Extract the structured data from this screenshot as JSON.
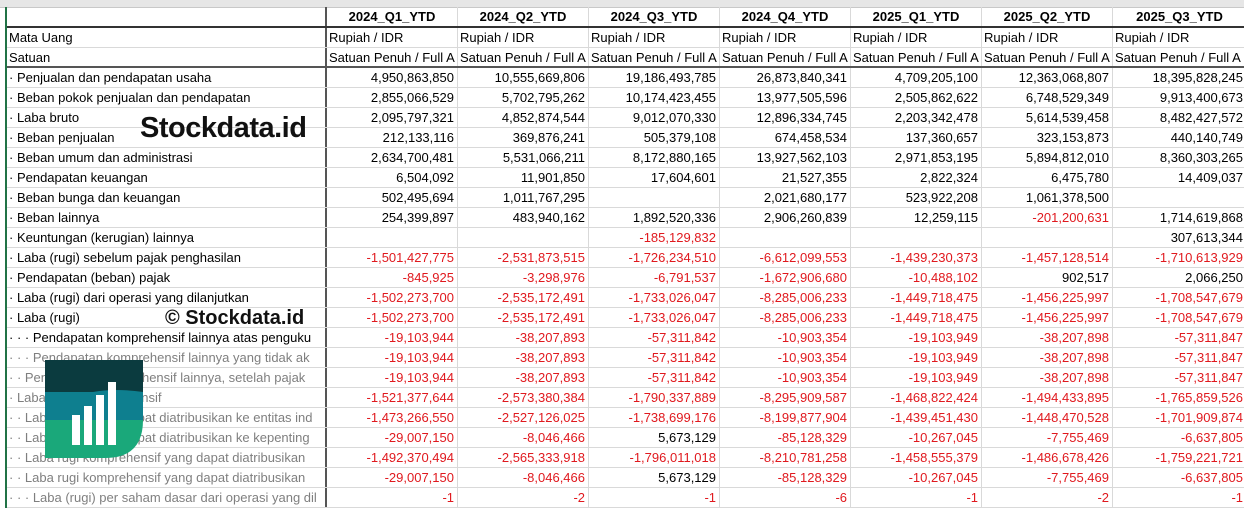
{
  "header": {
    "label_col": "",
    "periods": [
      "2024_Q1_YTD",
      "2024_Q2_YTD",
      "2024_Q3_YTD",
      "2024_Q4_YTD",
      "2025_Q1_YTD",
      "2025_Q2_YTD",
      "2025_Q3_YTD"
    ]
  },
  "meta_rows": [
    {
      "label": "Mata Uang",
      "values": [
        "Rupiah / IDR",
        "Rupiah / IDR",
        "Rupiah / IDR",
        "Rupiah / IDR",
        "Rupiah / IDR",
        "Rupiah / IDR",
        "Rupiah / IDR"
      ]
    },
    {
      "label": "Satuan",
      "values": [
        "Satuan Penuh / Full A",
        "Satuan Penuh / Full A",
        "Satuan Penuh / Full A",
        "Satuan Penuh / Full A",
        "Satuan Penuh / Full A",
        "Satuan Penuh / Full A",
        "Satuan Penuh / Full A"
      ]
    }
  ],
  "rows": [
    {
      "label": "· Penjualan dan pendapatan usaha",
      "values": [
        "4,950,863,850",
        "10,555,669,806",
        "19,186,493,785",
        "26,873,840,341",
        "4,709,205,100",
        "12,363,068,807",
        "18,395,828,245"
      ]
    },
    {
      "label": "· Beban pokok penjualan dan pendapatan",
      "values": [
        "2,855,066,529",
        "5,702,795,262",
        "10,174,423,455",
        "13,977,505,596",
        "2,505,862,622",
        "6,748,529,349",
        "9,913,400,673"
      ]
    },
    {
      "label": "· Laba bruto",
      "values": [
        "2,095,797,321",
        "4,852,874,544",
        "9,012,070,330",
        "12,896,334,745",
        "2,203,342,478",
        "5,614,539,458",
        "8,482,427,572"
      ]
    },
    {
      "label": "· Beban penjualan",
      "values": [
        "212,133,116",
        "369,876,241",
        "505,379,108",
        "674,458,534",
        "137,360,657",
        "323,153,873",
        "440,140,749"
      ]
    },
    {
      "label": "· Beban umum dan administrasi",
      "values": [
        "2,634,700,481",
        "5,531,066,211",
        "8,172,880,165",
        "13,927,562,103",
        "2,971,853,195",
        "5,894,812,010",
        "8,360,303,265"
      ]
    },
    {
      "label": "· Pendapatan keuangan",
      "values": [
        "6,504,092",
        "11,901,850",
        "17,604,601",
        "21,527,355",
        "2,822,324",
        "6,475,780",
        "14,409,037"
      ]
    },
    {
      "label": "· Beban bunga dan keuangan",
      "values": [
        "502,495,694",
        "1,011,767,295",
        "",
        "2,021,680,177",
        "523,922,208",
        "1,061,378,500",
        ""
      ]
    },
    {
      "label": "· Beban lainnya",
      "values": [
        "254,399,897",
        "483,940,162",
        "1,892,520,336",
        "2,906,260,839",
        "12,259,115",
        "-201,200,631",
        "1,714,619,868"
      ]
    },
    {
      "label": "· Keuntungan (kerugian) lainnya",
      "values": [
        "",
        "",
        "-185,129,832",
        "",
        "",
        "",
        "307,613,344"
      ]
    },
    {
      "label": "· Laba (rugi) sebelum pajak penghasilan",
      "values": [
        "-1,501,427,775",
        "-2,531,873,515",
        "-1,726,234,510",
        "-6,612,099,553",
        "-1,439,230,373",
        "-1,457,128,514",
        "-1,710,613,929"
      ]
    },
    {
      "label": "· Pendapatan (beban) pajak",
      "values": [
        "-845,925",
        "-3,298,976",
        "-6,791,537",
        "-1,672,906,680",
        "-10,488,102",
        "902,517",
        "2,066,250"
      ]
    },
    {
      "label": "· Laba (rugi) dari operasi yang dilanjutkan",
      "values": [
        "-1,502,273,700",
        "-2,535,172,491",
        "-1,733,026,047",
        "-8,285,006,233",
        "-1,449,718,475",
        "-1,456,225,997",
        "-1,708,547,679"
      ]
    },
    {
      "label": "· Laba (rugi)",
      "values": [
        "-1,502,273,700",
        "-2,535,172,491",
        "-1,733,026,047",
        "-8,285,006,233",
        "-1,449,718,475",
        "-1,456,225,997",
        "-1,708,547,679"
      ]
    },
    {
      "label": "· · · Pendapatan komprehensif lainnya atas penguku",
      "values": [
        "-19,103,944",
        "-38,207,893",
        "-57,311,842",
        "-10,903,354",
        "-19,103,949",
        "-38,207,898",
        "-57,311,847"
      ]
    },
    {
      "label": "· · · Pendapatan komprehensif lainnya yang tidak ak",
      "grey": true,
      "values": [
        "-19,103,944",
        "-38,207,893",
        "-57,311,842",
        "-10,903,354",
        "-19,103,949",
        "-38,207,898",
        "-57,311,847"
      ]
    },
    {
      "label": "· · Pendapatan komprehensif lainnya, setelah pajak",
      "grey": true,
      "values": [
        "-19,103,944",
        "-38,207,893",
        "-57,311,842",
        "-10,903,354",
        "-19,103,949",
        "-38,207,898",
        "-57,311,847"
      ]
    },
    {
      "label": "· Laba (rugi) komprehensif",
      "grey": true,
      "values": [
        "-1,521,377,644",
        "-2,573,380,384",
        "-1,790,337,889",
        "-8,295,909,587",
        "-1,468,822,424",
        "-1,494,433,895",
        "-1,765,859,526"
      ]
    },
    {
      "label": "· · Laba (rugi) yang dapat diatribusikan ke entitas ind",
      "grey": true,
      "values": [
        "-1,473,266,550",
        "-2,527,126,025",
        "-1,738,699,176",
        "-8,199,877,904",
        "-1,439,451,430",
        "-1,448,470,528",
        "-1,701,909,874"
      ]
    },
    {
      "label": "· · Laba (rugi) yang dapat diatribusikan ke kepenting",
      "grey": true,
      "values": [
        "-29,007,150",
        "-8,046,466",
        "5,673,129",
        "-85,128,329",
        "-10,267,045",
        "-7,755,469",
        "-6,637,805"
      ]
    },
    {
      "label": "· · Laba rugi komprehensif yang dapat diatribusikan",
      "grey": true,
      "values": [
        "-1,492,370,494",
        "-2,565,333,918",
        "-1,796,011,018",
        "-8,210,781,258",
        "-1,458,555,379",
        "-1,486,678,426",
        "-1,759,221,721"
      ]
    },
    {
      "label": "· · Laba rugi komprehensif yang dapat diatribusikan",
      "grey": true,
      "values": [
        "-29,007,150",
        "-8,046,466",
        "5,673,129",
        "-85,128,329",
        "-10,267,045",
        "-7,755,469",
        "-6,637,805"
      ]
    },
    {
      "label": "· · · Laba (rugi) per saham dasar dari operasi yang dil",
      "grey": true,
      "values": [
        "-1",
        "-2",
        "-1",
        "-6",
        "-1",
        "-2",
        "-1"
      ]
    }
  ],
  "watermark": {
    "copyright": "© Stockdata.id",
    "brand": "Stockdata.id",
    "colors": [
      "#0b3b3f",
      "#0e7f8f",
      "#1aa87a"
    ]
  },
  "colors": {
    "negative": "#e0191e",
    "grid_border": "#217346"
  }
}
